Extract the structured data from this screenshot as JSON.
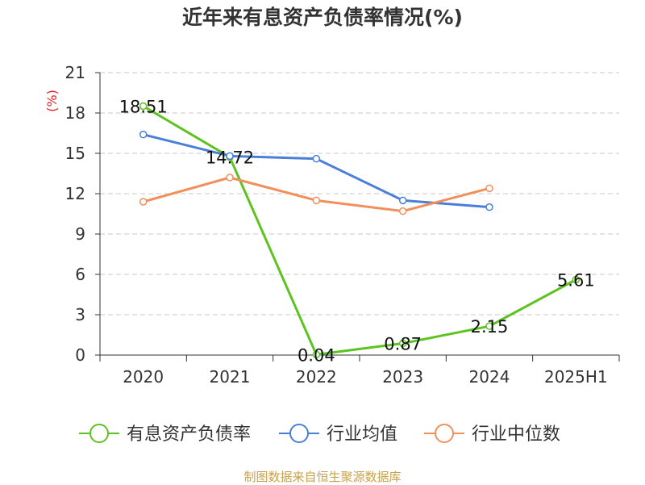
{
  "chart_data": {
    "type": "line",
    "title": "近年来有息资产负债率情况(%)",
    "ylabel": "(%)",
    "xlabel": "",
    "categories": [
      "2020",
      "2021",
      "2022",
      "2023",
      "2024",
      "2025H1"
    ],
    "ylim": [
      0,
      21
    ],
    "yticks": [
      0,
      3,
      6,
      9,
      12,
      15,
      18,
      21
    ],
    "grid": true,
    "legend_position": "bottom",
    "series": [
      {
        "name": "有息资产负债率",
        "color": "#5cc31f",
        "values": [
          18.51,
          14.72,
          0.04,
          0.87,
          2.15,
          5.61
        ],
        "labels": [
          "18.51",
          "14.72",
          "0.04",
          "0.87",
          "2.15",
          "5.61"
        ]
      },
      {
        "name": "行业均值",
        "color": "#4a7fd9",
        "values": [
          16.4,
          14.8,
          14.6,
          11.5,
          11.0,
          null
        ]
      },
      {
        "name": "行业中位数",
        "color": "#f28f5b",
        "values": [
          11.4,
          13.2,
          11.5,
          10.7,
          12.4,
          null
        ]
      }
    ]
  },
  "source_note": "制图数据来自恒生聚源数据库"
}
